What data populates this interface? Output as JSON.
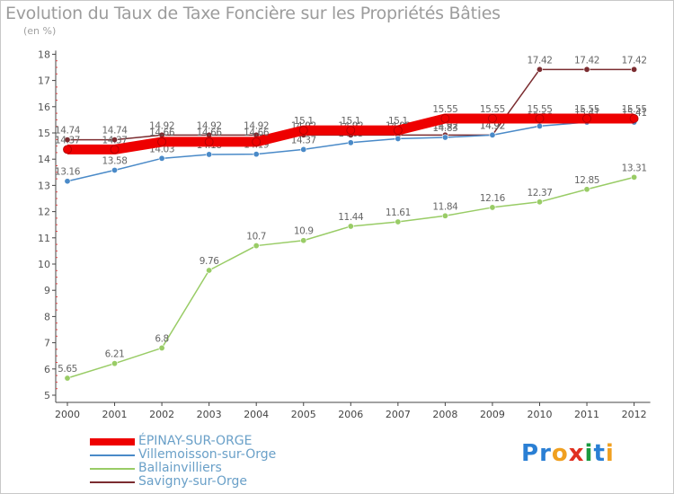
{
  "header": {
    "title": "Evolution du Taux de Taxe Foncière sur les Propriétés Bâties",
    "unit": "(en %)"
  },
  "chart_data": {
    "type": "line",
    "title": "Evolution du Taux de Taxe Foncière sur les Propriétés Bâties",
    "ylabel": "(en %)",
    "xlabel": "",
    "ylim": [
      5,
      18
    ],
    "yticks": [
      5,
      6,
      7,
      8,
      9,
      10,
      11,
      12,
      13,
      14,
      15,
      16,
      17,
      18
    ],
    "categories": [
      "2000",
      "2001",
      "2002",
      "2003",
      "2004",
      "2005",
      "2006",
      "2007",
      "2008",
      "2009",
      "2010",
      "2011",
      "2012"
    ],
    "grid": false,
    "legend_position": "bottom-left",
    "series": [
      {
        "name": "Savigny-sur-Orge",
        "color": "#7b2c30",
        "values": [
          14.74,
          14.74,
          14.92,
          14.92,
          14.92,
          14.92,
          14.92,
          14.92,
          14.92,
          14.92,
          17.42,
          17.42,
          17.42
        ],
        "labels": [
          "14.74",
          "14.74",
          "14.92",
          "14.92",
          "14.92",
          "14.92",
          "14.92",
          "14.92",
          "14.92",
          "14.92",
          "17.42",
          "17.42",
          "17.42"
        ]
      },
      {
        "name": "Villemoisson-sur-Orge",
        "color": "#4a8ac8",
        "values": [
          13.16,
          13.58,
          14.03,
          14.18,
          14.19,
          14.37,
          14.63,
          14.78,
          14.83,
          14.92,
          15.26,
          15.41,
          15.41
        ],
        "labels": [
          "13.16",
          "13.58",
          "14.03",
          "14.18",
          "14.19",
          "14.37",
          "14.63",
          "14.78",
          "14.83",
          "14.92",
          "15.26",
          "15.41",
          "15.41"
        ]
      },
      {
        "name": "Ballainvilliers",
        "color": "#99cc66",
        "values": [
          5.65,
          6.21,
          6.8,
          9.76,
          10.7,
          10.9,
          11.44,
          11.61,
          11.84,
          12.16,
          12.37,
          12.85,
          13.31
        ],
        "labels": [
          "5.65",
          "6.21",
          "6.8",
          "9.76",
          "10.7",
          "10.9",
          "11.44",
          "11.61",
          "11.84",
          "12.16",
          "12.37",
          "12.85",
          "13.31"
        ]
      },
      {
        "name": "ÉPINAY-SUR-ORGE",
        "color": "#ee0000",
        "values": [
          14.37,
          14.37,
          14.66,
          14.66,
          14.66,
          15.1,
          15.1,
          15.1,
          15.55,
          15.55,
          15.55,
          15.55,
          15.55
        ],
        "labels": [
          "14.37",
          "14.37",
          "14.66",
          "14.66",
          "14.66",
          "15.1",
          "15.1",
          "15.1",
          "15.55",
          "15.55",
          "15.55",
          "15.55",
          "15.55"
        ]
      }
    ]
  },
  "legend": {
    "items": [
      {
        "label": "ÉPINAY-SUR-ORGE",
        "color": "#ee0000"
      },
      {
        "label": "Villemoisson-sur-Orge",
        "color": "#4a8ac8"
      },
      {
        "label": "Ballainvilliers",
        "color": "#99cc66"
      },
      {
        "label": "Savigny-sur-Orge",
        "color": "#7b2c30"
      }
    ]
  },
  "logo": {
    "letters": [
      "P",
      "r",
      "o",
      "x",
      "i",
      "t",
      "i"
    ],
    "colors": [
      "#2a7fd4",
      "#2a7fd4",
      "#f0a020",
      "#e03020",
      "#1a9a40",
      "#2a7fd4",
      "#f0a020"
    ]
  }
}
